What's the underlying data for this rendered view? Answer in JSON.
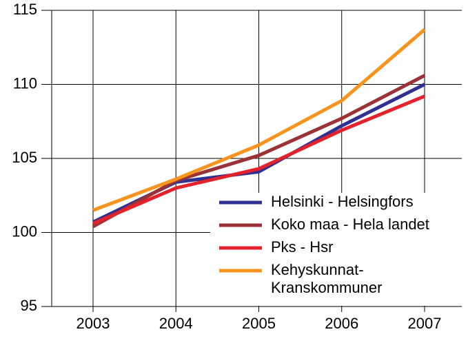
{
  "chart_data": {
    "type": "line",
    "categories": [
      "2003",
      "2004",
      "2005",
      "2006",
      "2007"
    ],
    "series": [
      {
        "name": "Helsinki - Helsingfors",
        "color": "#2e3192",
        "values": [
          100.7,
          103.4,
          104.1,
          107.2,
          110.0
        ]
      },
      {
        "name": "Koko maa - Hela landet",
        "color": "#9b3236",
        "values": [
          100.4,
          103.5,
          105.2,
          107.7,
          110.6
        ]
      },
      {
        "name": "Pks - Hsr",
        "color": "#e3222b",
        "values": [
          100.6,
          103.0,
          104.3,
          106.9,
          109.2
        ]
      },
      {
        "name": "Kehyskunnat-\nKranskommuner",
        "color": "#f7941d",
        "values": [
          101.5,
          103.6,
          105.9,
          108.9,
          113.7
        ]
      }
    ],
    "ylim": [
      95,
      115
    ],
    "yticks": [
      95,
      100,
      105,
      110,
      115
    ],
    "grid": true,
    "legend": "lower right"
  }
}
